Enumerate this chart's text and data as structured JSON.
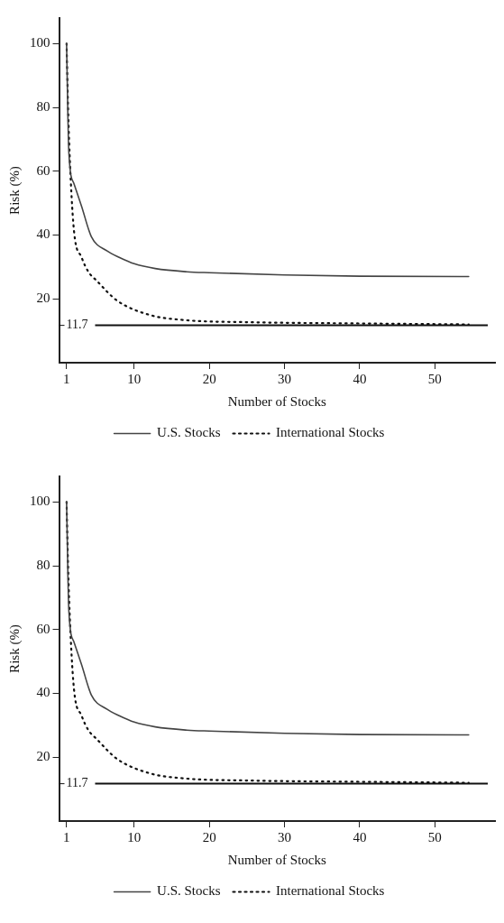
{
  "chart_data": [
    {
      "type": "line",
      "xlabel": "Number of Stocks",
      "ylabel": "Risk (%)",
      "xlim": [
        0,
        58
      ],
      "ylim": [
        0,
        108
      ],
      "xticks": [
        1,
        10,
        20,
        30,
        40,
        50
      ],
      "yticks": [
        20,
        40,
        60,
        80,
        100
      ],
      "grid": false,
      "legend": "bottom",
      "marker": "none",
      "series": [
        {
          "name": "U.S. Stocks",
          "color": "#444444",
          "line_style": "solid",
          "x": [
            1,
            1.3,
            2,
            3,
            4.3,
            6.4,
            8,
            10,
            12.8,
            17,
            20,
            30,
            40,
            54.5
          ],
          "values": [
            100,
            66,
            56,
            49,
            39.5,
            35,
            33,
            31,
            29.5,
            28.5,
            28.2,
            27.5,
            27.1,
            27
          ]
        },
        {
          "name": "International Stocks",
          "color": "#111111",
          "line_style": "dotted",
          "x": [
            1,
            1.2,
            1.5,
            2,
            3,
            3.9,
            5,
            7.7,
            12,
            17,
            25,
            40,
            54.5
          ],
          "values": [
            100,
            80,
            60,
            41,
            33,
            28.5,
            25.7,
            19.5,
            15,
            13.3,
            12.7,
            12.3,
            12
          ]
        }
      ],
      "ref_lines": [
        {
          "axis": "y",
          "value": 11.7,
          "label": "11.7",
          "color": "#111111"
        }
      ]
    },
    {
      "type": "line",
      "xlabel": "Number of Stocks",
      "ylabel": "Risk (%)",
      "xlim": [
        0,
        58
      ],
      "ylim": [
        0,
        108
      ],
      "xticks": [
        1,
        10,
        20,
        30,
        40,
        50
      ],
      "yticks": [
        20,
        40,
        60,
        80,
        100
      ],
      "grid": false,
      "legend": "bottom",
      "marker": "none",
      "series": [
        {
          "name": "U.S. Stocks",
          "color": "#444444",
          "line_style": "solid",
          "x": [
            1,
            1.3,
            2,
            3,
            4.3,
            6.4,
            8,
            10,
            12.8,
            17,
            20,
            30,
            40,
            54.5
          ],
          "values": [
            100,
            66,
            56,
            49,
            39.5,
            35,
            33,
            31,
            29.5,
            28.5,
            28.2,
            27.5,
            27.1,
            27
          ]
        },
        {
          "name": "International Stocks",
          "color": "#111111",
          "line_style": "dotted",
          "x": [
            1,
            1.2,
            1.5,
            2,
            3,
            3.9,
            5,
            7.7,
            12,
            17,
            25,
            40,
            54.5
          ],
          "values": [
            100,
            80,
            60,
            41,
            33,
            28.5,
            25.7,
            19.5,
            15,
            13.3,
            12.7,
            12.3,
            12
          ]
        }
      ],
      "ref_lines": [
        {
          "axis": "y",
          "value": 11.7,
          "label": "11.7",
          "color": "#111111"
        }
      ]
    }
  ]
}
